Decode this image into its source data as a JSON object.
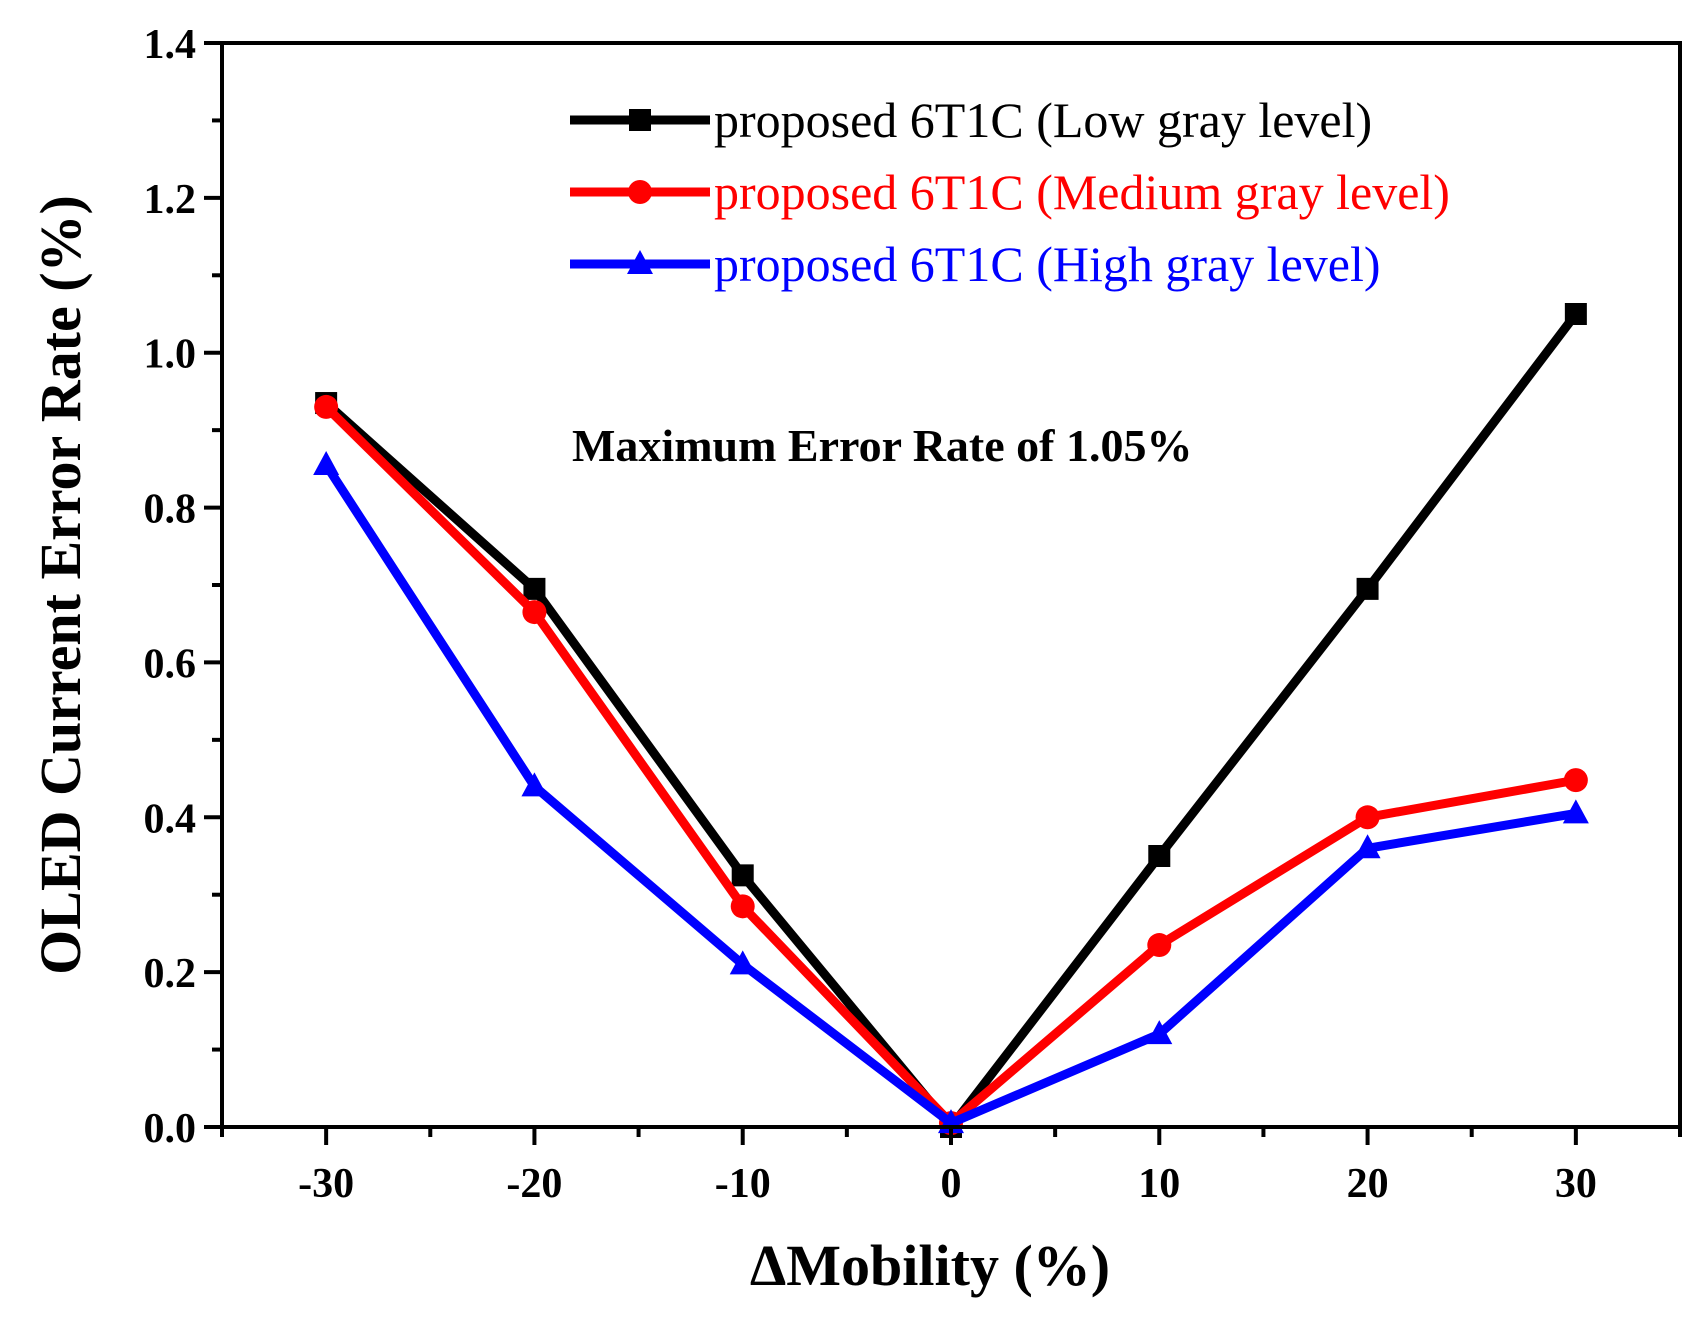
{
  "chart_data": {
    "type": "line",
    "title": "",
    "xlabel": "ΔMobility (%)",
    "ylabel": "OLED Current Error Rate (%)",
    "xlim": [
      -35,
      35
    ],
    "ylim": [
      0,
      1.4
    ],
    "x": [
      -30,
      -20,
      -10,
      0,
      10,
      20,
      30
    ],
    "xticks": [
      -30,
      -20,
      -10,
      0,
      10,
      20,
      30
    ],
    "xtick_labels": [
      "-30",
      "-20",
      "-10",
      "0",
      "10",
      "20",
      "30"
    ],
    "yticks": [
      0.0,
      0.2,
      0.4,
      0.6,
      0.8,
      1.0,
      1.2,
      1.4
    ],
    "ytick_labels": [
      "0.0",
      "0.2",
      "0.4",
      "0.6",
      "0.8",
      "1.0",
      "1.2",
      "1.4"
    ],
    "grid": false,
    "legend_position": "top-right",
    "series": [
      {
        "name": "proposed 6T1C (Low gray level)",
        "color": "#000000",
        "marker": "square",
        "values": [
          0.935,
          0.695,
          0.325,
          0.0,
          0.35,
          0.695,
          1.05
        ]
      },
      {
        "name": "proposed 6T1C (Medium gray level)",
        "color": "#ff0000",
        "marker": "circle",
        "values": [
          0.93,
          0.665,
          0.285,
          0.005,
          0.235,
          0.4,
          0.448
        ]
      },
      {
        "name": "proposed 6T1C (High gray level)",
        "color": "#0000ff",
        "marker": "triangle",
        "values": [
          0.855,
          0.44,
          0.21,
          0.005,
          0.12,
          0.36,
          0.405
        ]
      }
    ],
    "annotations": [
      {
        "text": "Maximum Error Rate of 1.05%"
      }
    ]
  }
}
